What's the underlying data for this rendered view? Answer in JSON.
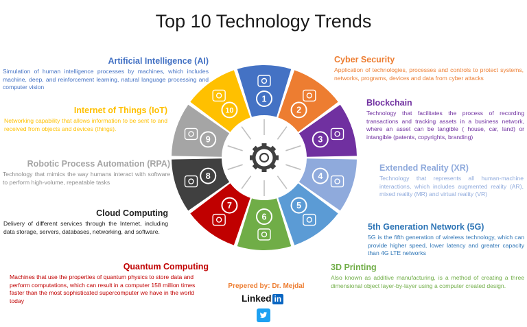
{
  "title": "Top 10 Technology Trends",
  "center_icon": "gear-icon",
  "trends": [
    {
      "num": "1",
      "name": "Artificial Intelligence (AI)",
      "desc": "Simulation of human intelligence processes by machines, which includes machine, deep, and reinforcement learning, natural language processing and computer vision",
      "color": "#4472C4",
      "text_color": "#4472C4",
      "icon": "brain-icon"
    },
    {
      "num": "2",
      "name": "Cyber Security",
      "desc": "Application of technologies, processes and controls to protect systems, networks, programs, devices and data from cyber attacks",
      "color": "#ED7D31",
      "text_color": "#ED7D31",
      "icon": "shield-icon"
    },
    {
      "num": "3",
      "name": "Blockchain",
      "desc": "Technology that facilitates the process of recording transactions and tracking assets in a business network, where an asset can be tangible ( house, car, land) or intangible (patents, copyrights, branding)",
      "color": "#7030A0",
      "text_color": "#7030A0",
      "icon": "blockchain-network-icon"
    },
    {
      "num": "4",
      "name": "Extended Reality (XR)",
      "desc": "Technology that represents all human-machine interactions, which includes augmented reality (AR), mixed reality (MR) and virtual reality (VR)",
      "color": "#8FAADC",
      "text_color": "#8FAADC",
      "icon": "vr-headset-icon"
    },
    {
      "num": "5",
      "name": "5th Generation Network (5G)",
      "desc": "5G is the fifth generation of wireless technology, which can provide higher speed, lower latency and greater capacity than 4G LTE networks",
      "color": "#5B9BD5",
      "text_color": "#2E75B6",
      "icon": "network-cubes-icon"
    },
    {
      "num": "6",
      "name": "3D Printing",
      "desc": "Also known as additive manufacturing, is a method of creating a three dimensional object layer-by-layer using a computer created design.",
      "color": "#70AD47",
      "text_color": "#70AD47",
      "icon": "cube-icon"
    },
    {
      "num": "7",
      "name": "Quantum Computing",
      "desc": "Machines that use the properties of quantum physics to store data and perform computations, which can result in a computer 158 million times faster than the most sophisticated supercomputer we have in the world today",
      "color": "#C00000",
      "text_color": "#C00000",
      "icon": "binary-icon"
    },
    {
      "num": "8",
      "name": "Cloud Computing",
      "desc": "Delivery of different services through the Internet, including data storage, servers, databases, networking, and software.",
      "color": "#404040",
      "text_color": "#222222",
      "icon": "cloud-computer-icon"
    },
    {
      "num": "9",
      "name": "Robotic Process Automation (RPA)",
      "desc": "Technology that mimics the way humans interact with software to perform high-volume, repeatable tasks",
      "color": "#A5A5A5",
      "text_color": "#A5A5A5",
      "icon": "robot-icon"
    },
    {
      "num": "10",
      "name": "Internet of Things (IoT)",
      "desc": "Networking capability that allows information to be sent to and received from objects and devices (things).",
      "color": "#FFC000",
      "text_color": "#FFC000",
      "icon": "smart-home-icon"
    }
  ],
  "credit": "Prepered by: Dr. Mejdal",
  "linkedin_text": "Linked",
  "linkedin_in": "in",
  "twitter_icon": "twitter-icon"
}
